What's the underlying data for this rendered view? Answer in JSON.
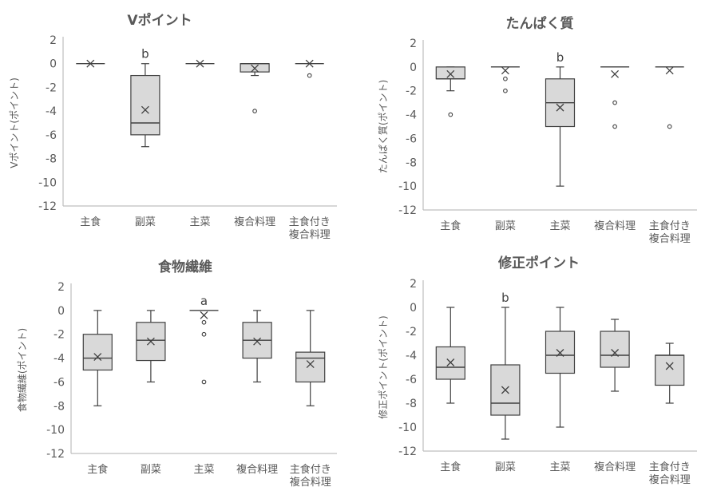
{
  "chart_data": [
    {
      "type": "box",
      "title": "Vポイント",
      "ylabel": "Vポイント(ポイント)",
      "ylim": [
        -12,
        2
      ],
      "yticks": [
        2,
        0,
        -2,
        -4,
        -6,
        -8,
        -10,
        -12
      ],
      "categories": [
        "主食",
        "副菜",
        "主菜",
        "複合料理",
        "主食付き\n複合料理"
      ],
      "boxes": [
        {
          "min": 0,
          "q1": 0,
          "median": 0,
          "q3": 0,
          "max": 0,
          "mean": 0,
          "outliers": []
        },
        {
          "min": -7,
          "q1": -6,
          "median": -5,
          "q3": -1,
          "max": 0,
          "mean": -3.9,
          "outliers": []
        },
        {
          "min": 0,
          "q1": 0,
          "median": 0,
          "q3": 0,
          "max": 0,
          "mean": 0,
          "outliers": []
        },
        {
          "min": -1,
          "q1": -0.7,
          "median": 0,
          "q3": 0,
          "max": 0,
          "mean": -0.4,
          "outliers": [
            -4
          ]
        },
        {
          "min": 0,
          "q1": 0,
          "median": 0,
          "q3": 0,
          "max": 0,
          "mean": 0,
          "outliers": [
            -1
          ]
        }
      ],
      "annotations": [
        {
          "category_index": 1,
          "text": "b"
        }
      ]
    },
    {
      "type": "box",
      "title": "たんぱく質",
      "ylabel": "たんぱく質(ポイント)",
      "ylim": [
        -12,
        2
      ],
      "yticks": [
        2,
        0,
        -2,
        -4,
        -6,
        -8,
        -10,
        -12
      ],
      "categories": [
        "主食",
        "副菜",
        "主菜",
        "複合料理",
        "主食付き\n複合料理"
      ],
      "boxes": [
        {
          "min": -2,
          "q1": -1,
          "median": -1,
          "q3": 0,
          "max": 0,
          "mean": -0.6,
          "outliers": [
            -4
          ]
        },
        {
          "min": 0,
          "q1": 0,
          "median": 0,
          "q3": 0,
          "max": 0,
          "mean": -0.3,
          "outliers": [
            -1,
            -2
          ]
        },
        {
          "min": -10,
          "q1": -5,
          "median": -3,
          "q3": -1,
          "max": 0,
          "mean": -3.4,
          "outliers": []
        },
        {
          "min": 0,
          "q1": 0,
          "median": 0,
          "q3": 0,
          "max": 0,
          "mean": -0.6,
          "outliers": [
            -3,
            -5
          ]
        },
        {
          "min": 0,
          "q1": 0,
          "median": 0,
          "q3": 0,
          "max": 0,
          "mean": -0.3,
          "outliers": [
            -5
          ]
        }
      ],
      "annotations": [
        {
          "category_index": 2,
          "text": "b"
        }
      ]
    },
    {
      "type": "box",
      "title": "食物繊維",
      "ylabel": "食物繊維(ポイント)",
      "ylim": [
        -12,
        2
      ],
      "yticks": [
        2,
        0,
        -2,
        -4,
        -6,
        -8,
        -10,
        -12
      ],
      "categories": [
        "主食",
        "副菜",
        "主菜",
        "複合料理",
        "主食付き\n複合料理"
      ],
      "boxes": [
        {
          "min": -8,
          "q1": -5,
          "median": -4,
          "q3": -2,
          "max": 0,
          "mean": -3.9,
          "outliers": []
        },
        {
          "min": -6,
          "q1": -4.2,
          "median": -2.5,
          "q3": -1,
          "max": 0,
          "mean": -2.6,
          "outliers": []
        },
        {
          "min": 0,
          "q1": 0,
          "median": 0,
          "q3": 0,
          "max": 0,
          "mean": -0.4,
          "outliers": [
            -1,
            -2,
            -6
          ]
        },
        {
          "min": -6,
          "q1": -4,
          "median": -2.5,
          "q3": -1,
          "max": 0,
          "mean": -2.6,
          "outliers": []
        },
        {
          "min": -8,
          "q1": -6,
          "median": -4,
          "q3": -3.5,
          "max": 0,
          "mean": -4.5,
          "outliers": []
        }
      ],
      "annotations": [
        {
          "category_index": 2,
          "text": "a"
        }
      ]
    },
    {
      "type": "box",
      "title": "修正ポイント",
      "ylabel": "修正ポイント(ポイント)",
      "ylim": [
        -12,
        2
      ],
      "yticks": [
        2,
        0,
        -2,
        -4,
        -6,
        -8,
        -10,
        -12
      ],
      "categories": [
        "主食",
        "副菜",
        "主菜",
        "複合料理",
        "主食付き\n複合料理"
      ],
      "boxes": [
        {
          "min": -8,
          "q1": -6,
          "median": -5,
          "q3": -3.3,
          "max": 0,
          "mean": -4.6,
          "outliers": []
        },
        {
          "min": -11,
          "q1": -9,
          "median": -8,
          "q3": -4.8,
          "max": 0,
          "mean": -6.9,
          "outliers": []
        },
        {
          "min": -10,
          "q1": -5.5,
          "median": -4,
          "q3": -2,
          "max": 0,
          "mean": -3.8,
          "outliers": []
        },
        {
          "min": -7,
          "q1": -5,
          "median": -4,
          "q3": -2,
          "max": -1,
          "mean": -3.8,
          "outliers": []
        },
        {
          "min": -8,
          "q1": -6.5,
          "median": -4,
          "q3": -4,
          "max": -3,
          "mean": -4.9,
          "outliers": []
        }
      ],
      "annotations": [
        {
          "category_index": 1,
          "text": "b"
        }
      ]
    }
  ],
  "colors": {
    "box_fill": "#d9d9d9",
    "stroke": "#404040",
    "axis": "#bfbfbf",
    "text": "#595959"
  }
}
